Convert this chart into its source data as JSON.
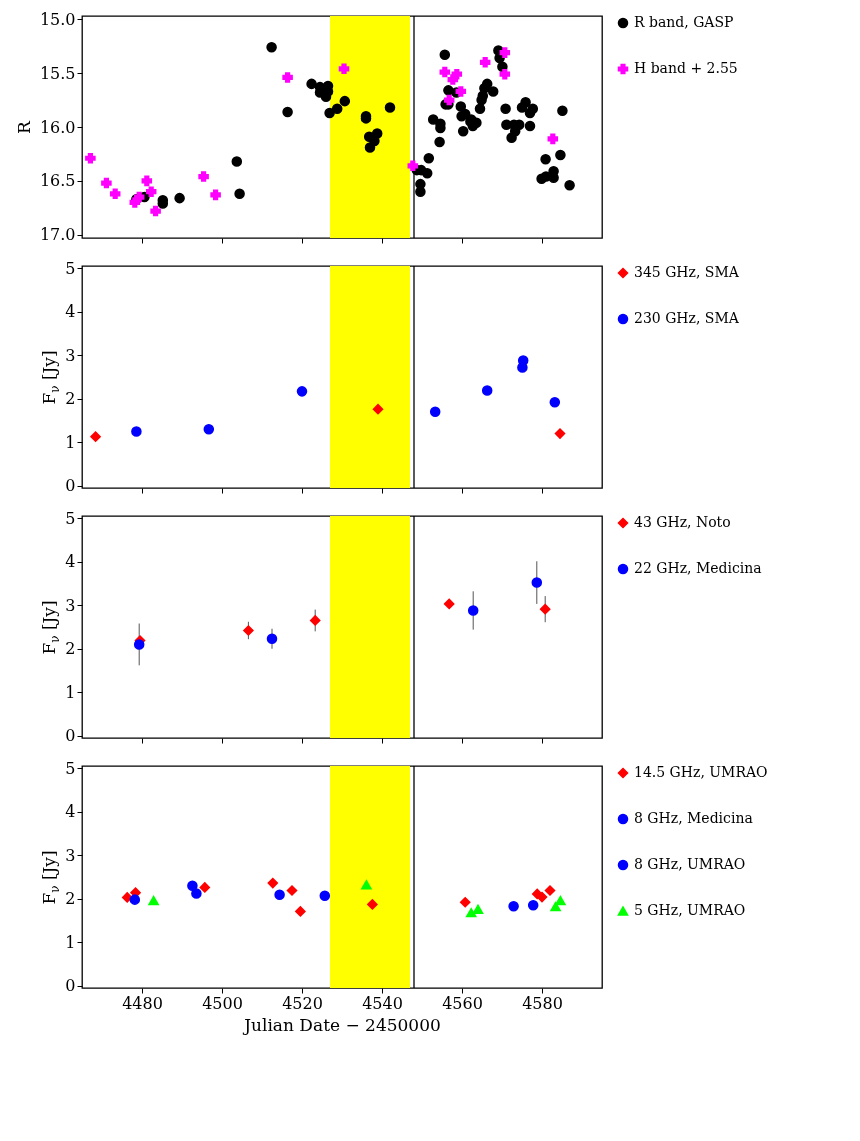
{
  "chart_data": [
    {
      "type": "scatter",
      "ylabel": "R",
      "xlim": [
        4465,
        4595
      ],
      "xticks": [
        4480,
        4500,
        4520,
        4540,
        4560,
        4580
      ],
      "ylim": [
        17.03,
        14.97
      ],
      "yticks": [
        {
          "value": 15,
          "label": "15.0"
        },
        15.5,
        {
          "value": 16,
          "label": "16.0"
        },
        16.5,
        {
          "value": 17,
          "label": "17.0"
        }
      ],
      "tick_labels": "y",
      "legend": "right",
      "bands": [
        {
          "axis": "x",
          "from": 4527,
          "to": 4547,
          "color": "#ffff00"
        }
      ],
      "ref_lines": [
        {
          "axis": "x",
          "value": 4548,
          "color": "#000000"
        }
      ],
      "series": [
        {
          "name": "R band, GASP",
          "color": "#000000",
          "marker": "circle",
          "x": [
            4478.6,
            4480.6,
            4485.2,
            4485.2,
            4489.4,
            4503.7,
            4504.4,
            4512.4,
            4516.4,
            4522.4,
            4524.5,
            4524.5,
            4526.5,
            4526.5,
            4526.0,
            4526.9,
            4528.8,
            4530.7,
            4536.0,
            4536.0,
            4536.8,
            4538.8,
            4538.1,
            4537.0,
            4542.0,
            4548.7,
            4549.8,
            4551.3,
            4549.6,
            4549.6,
            4551.7,
            4552.8,
            4554.6,
            4554.6,
            4554.4,
            4555.7,
            4556.6,
            4556.6,
            4555.9,
            4558.6,
            4559.7,
            4559.9,
            4560.8,
            4560.3,
            4562.1,
            4562.7,
            4563.6,
            4562.3,
            4564.5,
            4564.9,
            4565.2,
            4565.6,
            4566.3,
            4567.8,
            4569.1,
            4569.4,
            4570.1,
            4570.9,
            4571.1,
            4572.4,
            4573.3,
            4574.3,
            4573.0,
            4575.0,
            4575.9,
            4577.0,
            4577.7,
            4577.0,
            4579.9,
            4581.0,
            4582.9,
            4582.9,
            4580.9,
            4584.6,
            4585.1,
            4586.9
          ],
          "values": [
            16.67,
            16.65,
            16.68,
            16.71,
            16.66,
            16.32,
            16.62,
            15.26,
            15.86,
            15.6,
            15.63,
            15.68,
            15.62,
            15.67,
            15.72,
            15.87,
            15.83,
            15.76,
            15.9,
            15.92,
            16.09,
            16.06,
            16.13,
            16.19,
            15.82,
            16.4,
            16.4,
            16.43,
            16.53,
            16.6,
            16.29,
            15.93,
            15.97,
            16.01,
            16.14,
            15.33,
            15.66,
            15.79,
            15.79,
            15.68,
            15.81,
            15.9,
            15.88,
            16.04,
            15.95,
            15.99,
            15.96,
            15.93,
            15.83,
            15.75,
            15.71,
            15.64,
            15.6,
            15.67,
            15.29,
            15.36,
            15.44,
            15.83,
            15.98,
            16.1,
            16.04,
            15.98,
            15.98,
            15.82,
            15.77,
            15.87,
            15.83,
            15.99,
            16.48,
            16.46,
            16.41,
            16.47,
            16.3,
            16.26,
            15.85,
            16.54
          ]
        },
        {
          "name": "H band + 2.55",
          "color": "#ff00ff",
          "marker": "cross",
          "x": [
            4467.1,
            4471.1,
            4473.3,
            4478.2,
            4479.3,
            4481.2,
            4482.3,
            4483.4,
            4495.4,
            4498.4,
            4516.4,
            4530.5,
            4547.7,
            4555.7,
            4556.8,
            4557.7,
            4558.7,
            4559.7,
            4565.8,
            4570.7,
            4570.7,
            4582.7
          ],
          "values": [
            16.29,
            16.52,
            16.62,
            16.7,
            16.65,
            16.5,
            16.6,
            16.78,
            16.46,
            16.63,
            15.54,
            15.46,
            16.36,
            15.49,
            15.75,
            15.56,
            15.51,
            15.67,
            15.4,
            15.31,
            15.51,
            16.11
          ]
        }
      ]
    },
    {
      "type": "scatter",
      "ylabel": "F$_{ν}$ [Jy]",
      "xlim": [
        4465,
        4595
      ],
      "xticks": [
        4480,
        4500,
        4520,
        4540,
        4560,
        4580
      ],
      "ylim": [
        -0.05,
        5.05
      ],
      "yticks": [
        0,
        1,
        2,
        3,
        4,
        5
      ],
      "tick_labels": "y",
      "legend": "right",
      "bands": [
        {
          "axis": "x",
          "from": 4527,
          "to": 4547,
          "color": "#ffff00"
        }
      ],
      "ref_lines": [
        {
          "axis": "x",
          "value": 4548,
          "color": "#000000"
        }
      ],
      "series": [
        {
          "name": "345 GHz, SMA",
          "color": "#ff0000",
          "marker": "diamond",
          "x": [
            4468.4,
            4539.0,
            4584.5
          ],
          "values": [
            1.13,
            1.76,
            1.2
          ]
        },
        {
          "name": "230 GHz, SMA",
          "color": "#0000ff",
          "marker": "circle",
          "x": [
            4478.6,
            4496.7,
            4520.0,
            4553.3,
            4566.3,
            4575.3,
            4575.1,
            4583.2
          ],
          "values": [
            1.25,
            1.3,
            2.17,
            1.7,
            2.19,
            2.88,
            2.72,
            1.92
          ]
        }
      ]
    },
    {
      "type": "scatter",
      "ylabel": "F$_{ν}$ [Jy]",
      "xlim": [
        4465,
        4595
      ],
      "xticks": [
        4480,
        4500,
        4520,
        4540,
        4560,
        4580
      ],
      "ylim": [
        -0.05,
        5.05
      ],
      "yticks": [
        0,
        1,
        2,
        3,
        4,
        5
      ],
      "tick_labels": "y",
      "legend": "right",
      "bands": [
        {
          "axis": "x",
          "from": 4527,
          "to": 4547,
          "color": "#ffff00"
        }
      ],
      "ref_lines": [
        {
          "axis": "x",
          "value": 4548,
          "color": "#000000"
        }
      ],
      "series": [
        {
          "name": "43 GHz, Noto",
          "color": "#ff0000",
          "marker": "diamond",
          "x": [
            4479.5,
            4506.6,
            4523.3,
            4556.8,
            4580.8
          ],
          "values": [
            2.19,
            2.42,
            2.65,
            3.03,
            2.91
          ],
          "errors": [
            null,
            0.2,
            0.25,
            null,
            0.3
          ]
        },
        {
          "name": "22 GHz, Medicina",
          "color": "#0000ff",
          "marker": "circle",
          "x": [
            4479.3,
            4512.5,
            4562.8,
            4578.7
          ],
          "values": [
            2.1,
            2.23,
            2.88,
            3.52
          ],
          "errors": [
            0.48,
            0.23,
            0.44,
            0.49
          ]
        }
      ]
    },
    {
      "type": "scatter",
      "xlabel": "Julian Date − 2450000",
      "ylabel": "F$_{ν}$ [Jy]",
      "xlim": [
        4465,
        4595
      ],
      "xticks": [
        4480,
        4500,
        4520,
        4540,
        4560,
        4580
      ],
      "ylim": [
        -0.05,
        5.05
      ],
      "yticks": [
        0,
        1,
        2,
        3,
        4,
        5
      ],
      "legend": "right",
      "bands": [
        {
          "axis": "x",
          "from": 4527,
          "to": 4547,
          "color": "#ffff00"
        }
      ],
      "ref_lines": [
        {
          "axis": "x",
          "value": 4548,
          "color": "#000000"
        }
      ],
      "series": [
        {
          "name": "14.5 GHz, UMRAO",
          "color": "#ff0000",
          "marker": "diamond",
          "x": [
            4476.3,
            4478.4,
            4495.7,
            4512.7,
            4517.5,
            4519.6,
            4537.6,
            4560.8,
            4578.8,
            4580.0,
            4582.0
          ],
          "values": [
            2.03,
            2.14,
            2.26,
            2.36,
            2.19,
            1.71,
            1.87,
            1.92,
            2.11,
            2.04,
            2.19
          ]
        },
        {
          "name": "8 GHz, Medicina",
          "color": "#0000ff",
          "marker": "circle",
          "x": [
            4478.2,
            4514.4,
            4577.8
          ],
          "values": [
            1.98,
            2.09,
            1.85
          ]
        },
        {
          "name": "8 GHz, UMRAO",
          "color": "#0000ff",
          "marker": "circle",
          "x": [
            4492.6,
            4493.6,
            4525.7,
            4572.9
          ],
          "values": [
            2.3,
            2.12,
            2.07,
            1.83
          ]
        },
        {
          "name": "5 GHz, UMRAO",
          "color": "#00ff00",
          "marker": "triangle",
          "x": [
            4482.9,
            4536.1,
            4562.3,
            4564.0,
            4583.4,
            4584.6
          ],
          "values": [
            1.96,
            2.32,
            1.68,
            1.76,
            1.82,
            1.96
          ]
        }
      ]
    }
  ]
}
